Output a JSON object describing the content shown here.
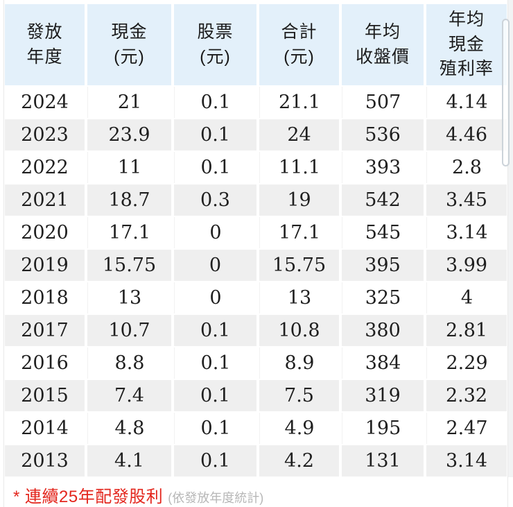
{
  "table": {
    "columns": [
      {
        "id": "year",
        "label_lines": [
          "發放",
          "年度"
        ]
      },
      {
        "id": "cash",
        "label_lines": [
          "現金",
          "(元)"
        ]
      },
      {
        "id": "stock",
        "label_lines": [
          "股票",
          "(元)"
        ]
      },
      {
        "id": "total",
        "label_lines": [
          "合計",
          "(元)"
        ]
      },
      {
        "id": "avg_close",
        "label_lines": [
          "年均",
          "收盤價"
        ]
      },
      {
        "id": "avg_yield",
        "label_lines": [
          "年均",
          "現金",
          "殖利率"
        ]
      }
    ],
    "rows": [
      [
        "2024",
        "21",
        "0.1",
        "21.1",
        "507",
        "4.14"
      ],
      [
        "2023",
        "23.9",
        "0.1",
        "24",
        "536",
        "4.46"
      ],
      [
        "2022",
        "11",
        "0.1",
        "11.1",
        "393",
        "2.8"
      ],
      [
        "2021",
        "18.7",
        "0.3",
        "19",
        "542",
        "3.45"
      ],
      [
        "2020",
        "17.1",
        "0",
        "17.1",
        "545",
        "3.14"
      ],
      [
        "2019",
        "15.75",
        "0",
        "15.75",
        "395",
        "3.99"
      ],
      [
        "2018",
        "13",
        "0",
        "13",
        "325",
        "4"
      ],
      [
        "2017",
        "10.7",
        "0.1",
        "10.8",
        "380",
        "2.81"
      ],
      [
        "2016",
        "8.8",
        "0.1",
        "8.9",
        "384",
        "2.29"
      ],
      [
        "2015",
        "7.4",
        "0.1",
        "7.5",
        "319",
        "2.32"
      ],
      [
        "2014",
        "4.8",
        "0.1",
        "4.9",
        "195",
        "2.47"
      ],
      [
        "2013",
        "4.1",
        "0.1",
        "4.2",
        "131",
        "3.14"
      ]
    ]
  },
  "footer": {
    "note_red": "* 連續25年配發股利",
    "note_gray": "(依發放年度統計)"
  },
  "colors": {
    "header_bg": "#e3f0fa",
    "stripe_bg": "#efefef",
    "note_red": "#e3261d",
    "note_gray": "#b7b7b7"
  }
}
